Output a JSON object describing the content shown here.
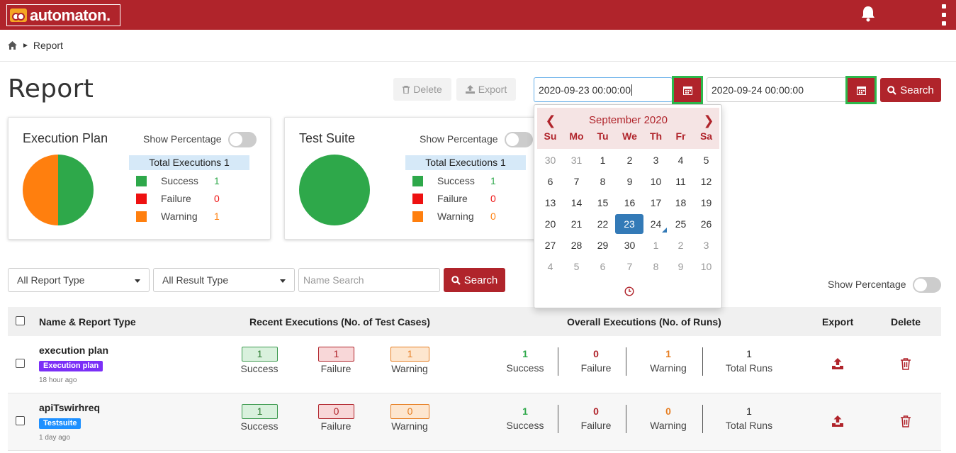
{
  "app": {
    "logo_text": "automaton."
  },
  "breadcrumb": {
    "current": "Report"
  },
  "page": {
    "title": "Report"
  },
  "toolbar": {
    "delete_label": "Delete",
    "export_label": "Export",
    "from_date": "2020-09-23 00:00:00",
    "to_date": "2020-09-24 00:00:00",
    "search_label": "Search"
  },
  "cards": [
    {
      "title": "Execution Plan",
      "toggle_label": "Show Percentage",
      "total_label": "Total Executions 1",
      "legend": [
        {
          "label": "Success",
          "value": "1",
          "color": "#2ea84a"
        },
        {
          "label": "Failure",
          "value": "0",
          "color": "#ee1111"
        },
        {
          "label": "Warning",
          "value": "1",
          "color": "#ff7f0e"
        }
      ]
    },
    {
      "title": "Test Suite",
      "toggle_label": "Show Percentage",
      "total_label": "Total Executions 1",
      "legend": [
        {
          "label": "Success",
          "value": "1",
          "color": "#2ea84a"
        },
        {
          "label": "Failure",
          "value": "0",
          "color": "#ee1111"
        },
        {
          "label": "Warning",
          "value": "0",
          "color": "#ff7f0e"
        }
      ]
    }
  ],
  "calendar": {
    "month_label": "September 2020",
    "prev": "❮",
    "next": "❯",
    "weekdays": [
      "Su",
      "Mo",
      "Tu",
      "We",
      "Th",
      "Fr",
      "Sa"
    ],
    "weeks": [
      [
        "30",
        "31",
        "1",
        "2",
        "3",
        "4",
        "5"
      ],
      [
        "6",
        "7",
        "8",
        "9",
        "10",
        "11",
        "12"
      ],
      [
        "13",
        "14",
        "15",
        "16",
        "17",
        "18",
        "19"
      ],
      [
        "20",
        "21",
        "22",
        "23",
        "24",
        "25",
        "26"
      ],
      [
        "27",
        "28",
        "29",
        "30",
        "1",
        "2",
        "3"
      ],
      [
        "4",
        "5",
        "6",
        "7",
        "8",
        "9",
        "10"
      ]
    ],
    "selected": "23",
    "today": "24"
  },
  "filters": {
    "report_type": "All Report Type",
    "result_type": "All Result Type",
    "name_placeholder": "Name Search",
    "search_label": "Search",
    "show_percentage": "Show Percentage"
  },
  "table": {
    "headers": {
      "name": "Name & Report Type",
      "recent": "Recent Executions (No. of Test Cases)",
      "overall": "Overall Executions (No. of Runs)",
      "export": "Export",
      "delete": "Delete"
    },
    "rows": [
      {
        "name": "execution plan",
        "type": "Execution plan",
        "type_color": "#7b2ff7",
        "time": "18 hour ago",
        "recent": {
          "success": "1",
          "failure": "1",
          "warning": "1"
        },
        "overall": {
          "success": "1",
          "failure": "0",
          "warning": "1",
          "total": "1"
        }
      },
      {
        "name": "apiTswirhreq",
        "type": "Testsuite",
        "type_color": "#1e90ff",
        "time": "1 day ago",
        "recent": {
          "success": "1",
          "failure": "0",
          "warning": "0"
        },
        "overall": {
          "success": "1",
          "failure": "0",
          "warning": "0",
          "total": "1"
        }
      }
    ],
    "labels": {
      "success": "Success",
      "failure": "Failure",
      "warning": "Warning",
      "total": "Total Runs"
    }
  },
  "colors": {
    "brand": "#b0242b",
    "success": "#2ea84a",
    "failure": "#b0242b",
    "warning": "#e67e22"
  }
}
